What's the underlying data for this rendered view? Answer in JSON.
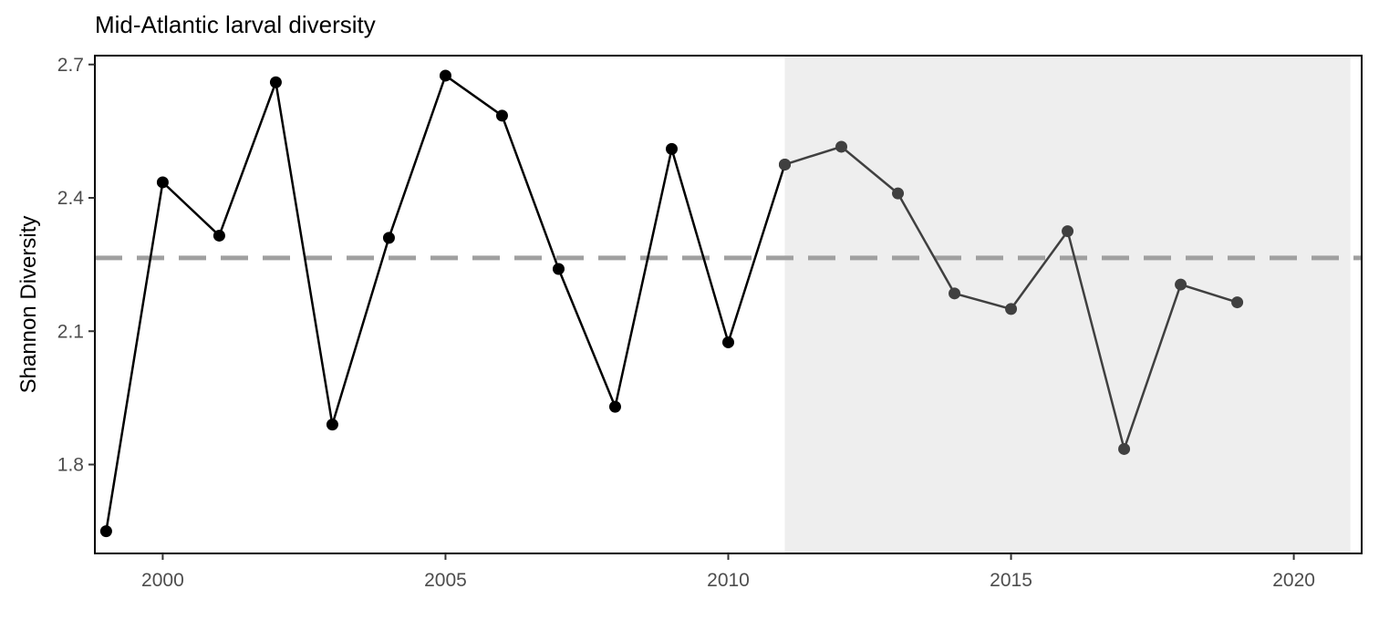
{
  "chart_data": {
    "type": "line",
    "title": "Mid-Atlantic larval diversity",
    "xlabel": "",
    "ylabel": "Shannon Diversity",
    "xlim": [
      1998.8,
      2021.2
    ],
    "ylim": [
      1.6,
      2.72
    ],
    "x_ticks": [
      2000,
      2005,
      2010,
      2015,
      2020
    ],
    "y_ticks": [
      1.8,
      2.1,
      2.4,
      2.7
    ],
    "x_tick_labels": [
      "2000",
      "2005",
      "2010",
      "2015",
      "2020"
    ],
    "y_tick_labels": [
      "1.8",
      "2.1",
      "2.4",
      "2.7"
    ],
    "shaded_region": {
      "x_start": 2011,
      "x_end": 2021,
      "color": "#eeeeee"
    },
    "reference_line": {
      "y": 2.265,
      "style": "dashed",
      "color": "#a0a0a0"
    },
    "series": [
      {
        "x": [
          1999,
          2000,
          2001,
          2002,
          2003,
          2004,
          2005,
          2006,
          2007,
          2008,
          2009,
          2010,
          2011
        ],
        "values": [
          1.65,
          2.435,
          2.315,
          2.66,
          1.89,
          2.31,
          2.675,
          2.585,
          2.24,
          1.93,
          2.51,
          2.075,
          2.475
        ],
        "color": "#000000"
      },
      {
        "x": [
          2011,
          2012,
          2013,
          2014,
          2015,
          2016,
          2017,
          2018,
          2019
        ],
        "values": [
          2.475,
          2.515,
          2.41,
          2.185,
          2.15,
          2.325,
          1.835,
          2.205,
          2.165
        ],
        "color": "#404040"
      }
    ],
    "grid": false,
    "legend": "none"
  }
}
